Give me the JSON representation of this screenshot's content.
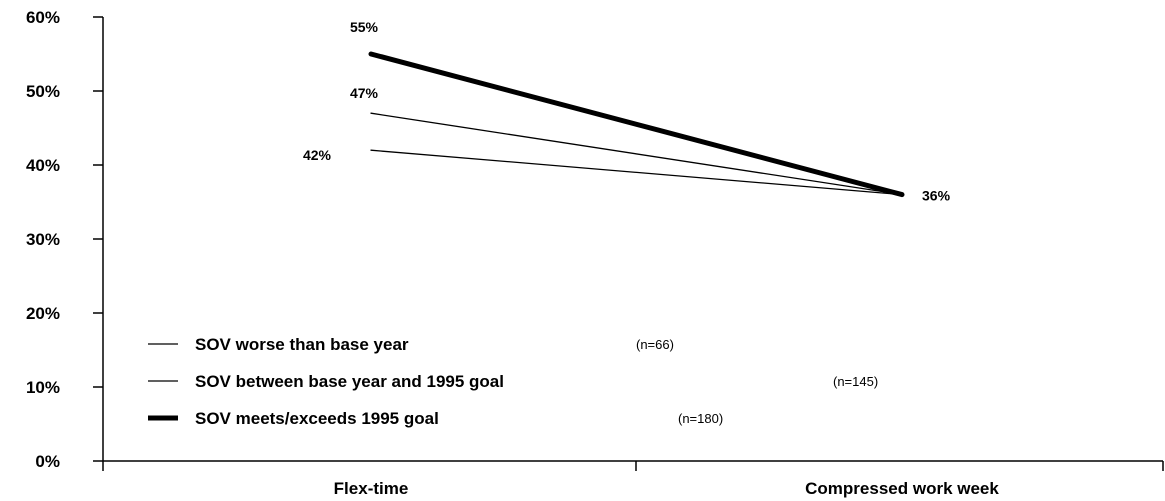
{
  "chart_data": {
    "type": "line",
    "categories": [
      "Flex-time",
      "Compressed work week"
    ],
    "ylim": [
      0,
      60
    ],
    "yticks": [
      0,
      10,
      20,
      30,
      40,
      50,
      60
    ],
    "ytick_labels": [
      "0%",
      "10%",
      "20%",
      "30%",
      "40%",
      "50%",
      "60%"
    ],
    "series": [
      {
        "name": "SOV worse than base year",
        "n_label": "(n=66)",
        "values": [
          42,
          36
        ],
        "labels": [
          "42%",
          ""
        ],
        "weight": "thin"
      },
      {
        "name": "SOV between base year and 1995 goal",
        "n_label": "(n=145)",
        "values": [
          47,
          36
        ],
        "labels": [
          "47%",
          ""
        ],
        "weight": "thin"
      },
      {
        "name": "SOV meets/exceeds 1995 goal",
        "n_label": "(n=180)",
        "values": [
          55,
          36
        ],
        "labels": [
          "55%",
          "36%"
        ],
        "weight": "thick"
      }
    ],
    "legend_position": "bottom-left",
    "grid": false,
    "line_color": "#000000"
  }
}
